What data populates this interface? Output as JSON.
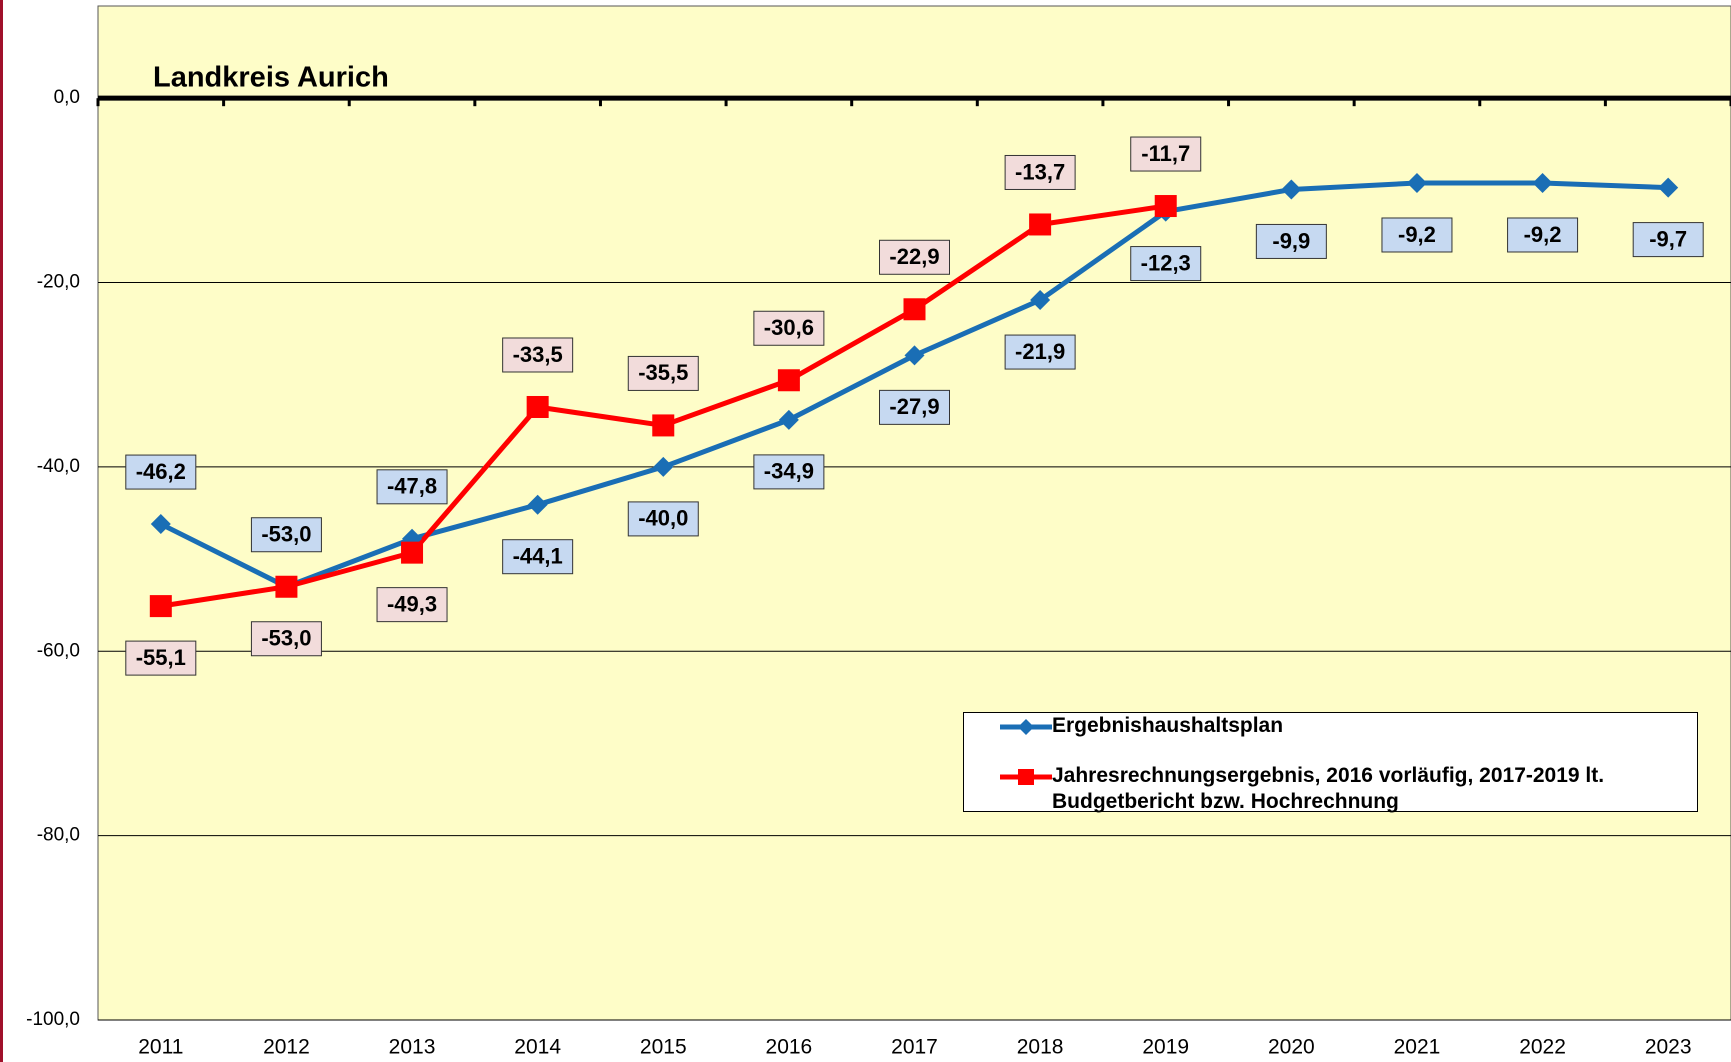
{
  "chart_data": {
    "type": "line",
    "title": "Landkreis Aurich",
    "categories": [
      "2011",
      "2012",
      "2013",
      "2014",
      "2015",
      "2016",
      "2017",
      "2018",
      "2019",
      "2020",
      "2021",
      "2022",
      "2023"
    ],
    "series": [
      {
        "name": "Ergebnishaushaltsplan",
        "color": "#1a6eb5",
        "marker": "diamond",
        "values": [
          -46.2,
          -53.0,
          -47.8,
          -44.1,
          -40.0,
          -34.9,
          -27.9,
          -21.9,
          -12.3,
          -9.9,
          -9.2,
          -9.2,
          -9.7
        ],
        "value_labels": [
          "-46,2",
          "-53,0",
          "-47,8",
          "-44,1",
          "-40,0",
          "-34,9",
          "-27,9",
          "-21,9",
          "-12,3",
          "-9,9",
          "-9,2",
          "-9,2",
          "-9,7"
        ]
      },
      {
        "name": "Jahresrechnungsergebnis, 2016 vorläufig, 2017-2019 lt. Budgetbericht bzw. Hochrechnung",
        "color": "#ff0000",
        "marker": "square",
        "values": [
          -55.1,
          -53.0,
          -49.3,
          -33.5,
          -35.5,
          -30.6,
          -22.9,
          -13.7,
          -11.7,
          null,
          null,
          null,
          null
        ],
        "value_labels": [
          "-55,1",
          "-53,0",
          "-49,3",
          "-33,5",
          "-35,5",
          "-30,6",
          "-22,9",
          "-13,7",
          "-11,7",
          null,
          null,
          null,
          null
        ]
      }
    ],
    "ylim": [
      -100,
      10
    ],
    "yticks": [
      {
        "value": -100,
        "label": "-100,0"
      },
      {
        "value": -80,
        "label": "-80,0"
      },
      {
        "value": -60,
        "label": "-60,0"
      },
      {
        "value": -40,
        "label": "-40,0"
      },
      {
        "value": -20,
        "label": "-20,0"
      },
      {
        "value": 0,
        "label": "0,0"
      }
    ],
    "grid": true
  }
}
